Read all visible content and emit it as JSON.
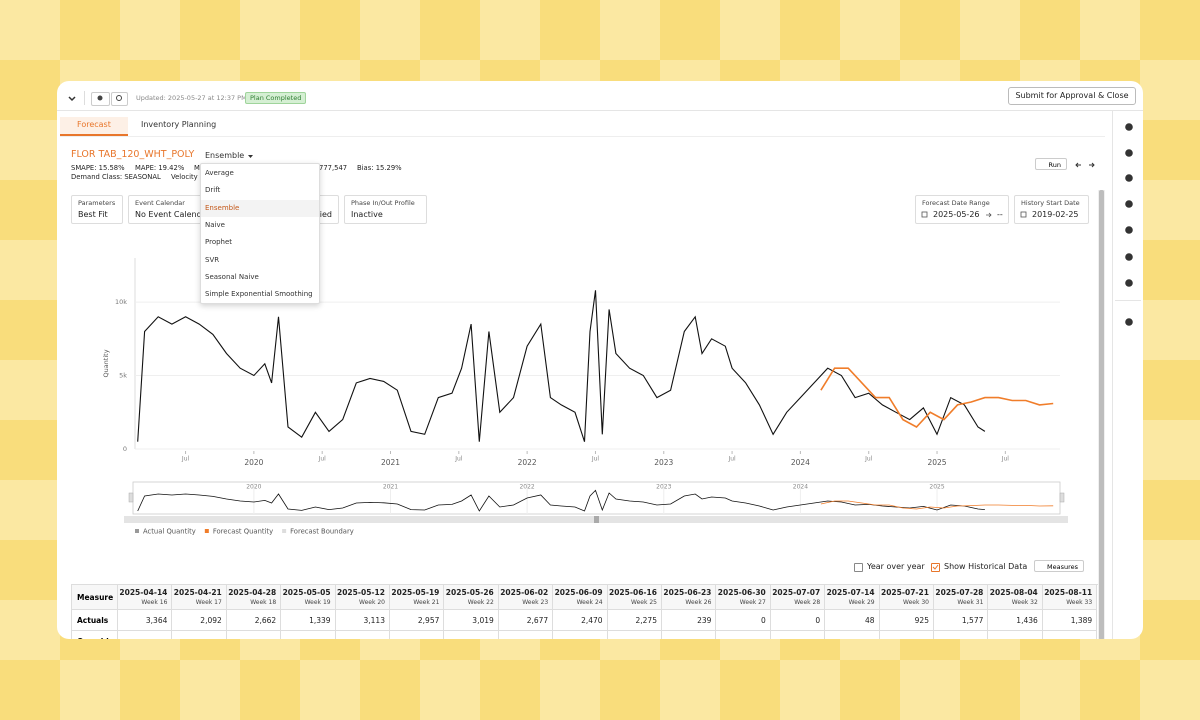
{
  "header": {
    "updated": "Updated: 2025-05-27 at 12:37 PM",
    "status": "Plan Completed",
    "submit": "Submit for Approval & Close"
  },
  "tabs": [
    "Forecast",
    "Inventory Planning"
  ],
  "item": {
    "name": "FLOR TAB_120_WHT_POLY",
    "model": "Ensemble",
    "metrics_left": [
      "SMAPE: 15.58%",
      "MAPE: 19.42%",
      "MA"
    ],
    "metrics_right": [
      "777,547",
      "Bias: 15.29%"
    ],
    "class_line": [
      "Demand Class: SEASONAL",
      "Velocity"
    ]
  },
  "run": "Run",
  "dropdown": {
    "options": [
      "Average",
      "Drift",
      "Ensemble",
      "Naive",
      "Prophet",
      "SVR",
      "Seasonal Naive",
      "Simple Exponential Smoothing"
    ],
    "selected": 2
  },
  "filters": [
    {
      "label": "Parameters",
      "value": "Best Fit"
    },
    {
      "label": "Event Calendar",
      "value": "No Event Calendar"
    },
    {
      "value": "lied"
    },
    {
      "label": "Phase In/Out Profile",
      "value": "Inactive"
    }
  ],
  "date_filters": [
    {
      "label": "Forecast Date Range",
      "value": "2025-05-26",
      "end": "--"
    },
    {
      "label": "History Start Date",
      "value": "2019-02-25"
    }
  ],
  "chart_data": {
    "type": "line",
    "y_label": "Quantity",
    "xlim": [
      2019.13,
      2025.9
    ],
    "xticks": [
      {
        "value": 2019.5,
        "label": "Jul"
      },
      2020,
      {
        "value": 2020.5,
        "label": "Jul"
      },
      2021,
      {
        "value": 2021.5,
        "label": "Jul"
      },
      2022,
      {
        "value": 2022.5,
        "label": "Jul"
      },
      2023,
      {
        "value": 2023.5,
        "label": "Jul"
      },
      2024,
      {
        "value": 2024.5,
        "label": "Jul"
      },
      2025,
      {
        "value": 2025.5,
        "label": "Jul"
      }
    ],
    "ylim": [
      0,
      13000
    ],
    "yticks": [
      0,
      {
        "value": 5000,
        "label": "5k"
      },
      {
        "value": 10000,
        "label": "10k"
      }
    ],
    "navigator_ticks": [
      2020,
      2021,
      2022,
      2023,
      2024,
      2025
    ],
    "series": [
      {
        "name": "Actual Quantity",
        "color": "#111111",
        "x": [
          2019.15,
          2019.2,
          2019.3,
          2019.4,
          2019.5,
          2019.6,
          2019.7,
          2019.8,
          2019.9,
          2020.0,
          2020.08,
          2020.13,
          2020.18,
          2020.25,
          2020.35,
          2020.45,
          2020.55,
          2020.65,
          2020.75,
          2020.85,
          2020.95,
          2021.05,
          2021.15,
          2021.25,
          2021.35,
          2021.45,
          2021.52,
          2021.59,
          2021.65,
          2021.72,
          2021.8,
          2021.9,
          2022.0,
          2022.1,
          2022.17,
          2022.25,
          2022.35,
          2022.42,
          2022.46,
          2022.5,
          2022.55,
          2022.6,
          2022.65,
          2022.75,
          2022.85,
          2022.95,
          2023.05,
          2023.15,
          2023.23,
          2023.28,
          2023.35,
          2023.45,
          2023.5,
          2023.6,
          2023.7,
          2023.8,
          2023.9,
          2024.0,
          2024.1,
          2024.2,
          2024.3,
          2024.4,
          2024.5,
          2024.6,
          2024.7,
          2024.8,
          2024.9,
          2025.0,
          2025.1,
          2025.2,
          2025.3,
          2025.35
        ],
        "values": [
          500,
          8000,
          9000,
          8500,
          9000,
          8500,
          7800,
          6500,
          5500,
          5000,
          5800,
          4500,
          9000,
          1500,
          800,
          2500,
          1200,
          2000,
          4500,
          4800,
          4600,
          4000,
          1200,
          1000,
          3500,
          3800,
          5500,
          8500,
          500,
          8000,
          2500,
          3500,
          7000,
          8500,
          3500,
          3000,
          2500,
          500,
          8000,
          10800,
          1000,
          9500,
          6500,
          5500,
          5000,
          3500,
          4000,
          8000,
          9000,
          6500,
          7500,
          7000,
          5500,
          4500,
          3000,
          1000,
          2500,
          3500,
          4500,
          5500,
          5000,
          3500,
          3800,
          3000,
          2500,
          2000,
          2800,
          1000,
          3500,
          3000,
          1500,
          1200
        ]
      },
      {
        "name": "Forecast Quantity",
        "color": "#f07d2a",
        "x": [
          2024.15,
          2024.25,
          2024.35,
          2024.45,
          2024.55,
          2024.65,
          2024.75,
          2024.85,
          2024.95,
          2025.05,
          2025.15,
          2025.25,
          2025.35,
          2025.45,
          2025.55,
          2025.65,
          2025.75,
          2025.85
        ],
        "values": [
          4000,
          5500,
          5500,
          4500,
          3500,
          3500,
          2000,
          1500,
          2500,
          2000,
          3000,
          3200,
          3500,
          3500,
          3300,
          3300,
          3000,
          3100
        ]
      },
      {
        "name": "Forecast Boundary",
        "color": "#dddddd",
        "x": [],
        "values": []
      }
    ]
  },
  "options": {
    "year_over_year": "Year over year",
    "show_historical": "Show Historical Data",
    "measures": "Measures"
  },
  "table": {
    "header": "Measure",
    "columns": [
      {
        "date": "2025-04-14",
        "week": "Week 16"
      },
      {
        "date": "2025-04-21",
        "week": "Week 17"
      },
      {
        "date": "2025-04-28",
        "week": "Week 18"
      },
      {
        "date": "2025-05-05",
        "week": "Week 19"
      },
      {
        "date": "2025-05-12",
        "week": "Week 20"
      },
      {
        "date": "2025-05-19",
        "week": "Week 21"
      },
      {
        "date": "2025-05-26",
        "week": "Week 22"
      },
      {
        "date": "2025-06-02",
        "week": "Week 23"
      },
      {
        "date": "2025-06-09",
        "week": "Week 24"
      },
      {
        "date": "2025-06-16",
        "week": "Week 25"
      },
      {
        "date": "2025-06-23",
        "week": "Week 26"
      },
      {
        "date": "2025-06-30",
        "week": "Week 27"
      },
      {
        "date": "2025-07-07",
        "week": "Week 28"
      },
      {
        "date": "2025-07-14",
        "week": "Week 29"
      },
      {
        "date": "2025-07-21",
        "week": "Week 30"
      },
      {
        "date": "2025-07-28",
        "week": "Week 31"
      },
      {
        "date": "2025-08-04",
        "week": "Week 32"
      },
      {
        "date": "2025-08-11",
        "week": "Week 33"
      }
    ],
    "rows": [
      {
        "label": "Actuals",
        "values": [
          "3,364",
          "2,092",
          "2,662",
          "1,339",
          "3,113",
          "2,957",
          "3,019",
          "2,677",
          "2,470",
          "2,275",
          "239",
          "0",
          "0",
          "48",
          "925",
          "1,577",
          "1,436",
          "1,389"
        ]
      },
      {
        "label": "Override"
      }
    ]
  }
}
